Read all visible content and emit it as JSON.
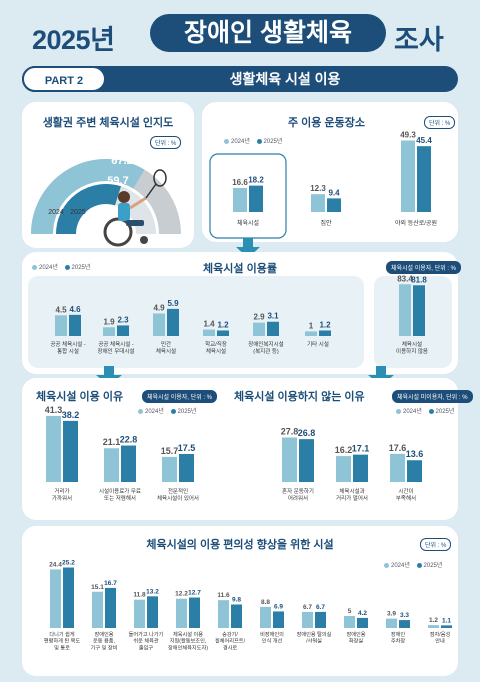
{
  "header": {
    "year": "2025년",
    "pill": "장애인 생활체육",
    "tail": "조사"
  },
  "part": {
    "tag": "PART 2",
    "title": "생활체육 시설 이용"
  },
  "legend": {
    "y2024": "2024년",
    "y2025": "2025년"
  },
  "colors": {
    "y2024": "#8fc4d6",
    "y2025": "#2b7fa6",
    "navy": "#1d4e7a",
    "gray": "#c8cdd2"
  },
  "chart_data": [
    {
      "id": "awareness",
      "type": "pie",
      "title": "생활권 주변 체육시설 인지도",
      "unit": "단위 : %",
      "series": [
        {
          "name": "2024",
          "value": 67.2
        },
        {
          "name": "2025",
          "value": 59.7
        }
      ]
    },
    {
      "id": "main-places",
      "type": "bar",
      "title": "주 이용 운동장소",
      "unit": "단위 : %",
      "categories": [
        "체육시설",
        "집안",
        "야외 등산로/공원"
      ],
      "series": [
        {
          "name": "2024년",
          "values": [
            16.6,
            12.3,
            49.3
          ]
        },
        {
          "name": "2025년",
          "values": [
            18.2,
            9.4,
            45.4
          ]
        }
      ]
    },
    {
      "id": "facility-usage",
      "type": "bar",
      "title": "체육시설 이용률",
      "unit": "체육시설 이용자, 단위 : %",
      "categories": [
        "공공 체육시설 -\n통합 시설",
        "공공 체육시설 -\n장애인 우대시설",
        "민간\n체육시설",
        "학교/직장\n체육시설",
        "장애인복지시설\n(복지관 등)",
        "기타 시설",
        "체육시설\n이용하지 않음"
      ],
      "series": [
        {
          "name": "2024년",
          "values": [
            4.5,
            1.9,
            4.9,
            1.4,
            2.9,
            1.0,
            83.4
          ]
        },
        {
          "name": "2025년",
          "values": [
            4.6,
            2.3,
            5.9,
            1.2,
            3.1,
            1.2,
            81.8
          ]
        }
      ]
    },
    {
      "id": "usage-reasons",
      "type": "bar",
      "title": "체육시설 이용 이유",
      "unit": "체육시설 이용자, 단위 : %",
      "categories": [
        "거리가\n가까워서",
        "시설이용료가 무료\n또는 저렴해서",
        "전문적인\n체육시설이 있어서"
      ],
      "series": [
        {
          "name": "2024년",
          "values": [
            41.3,
            21.1,
            15.7
          ]
        },
        {
          "name": "2025년",
          "values": [
            38.2,
            22.8,
            17.5
          ]
        }
      ]
    },
    {
      "id": "nonuse-reasons",
      "type": "bar",
      "title": "체육시설 이용하지 않는 이유",
      "unit": "체육시설 미이용자, 단위 : %",
      "categories": [
        "혼자 운동하기\n어려워서",
        "체육시설과\n거리가 멀어서",
        "시간이\n부족해서"
      ],
      "series": [
        {
          "name": "2024년",
          "values": [
            27.8,
            16.2,
            17.6
          ]
        },
        {
          "name": "2025년",
          "values": [
            26.8,
            17.1,
            13.6
          ]
        }
      ]
    },
    {
      "id": "convenience",
      "type": "bar",
      "title": "체육시설의 이용 편의성 향상을 위한 시설",
      "unit": "단위 : %",
      "categories": [
        "다니기 쉽게\n편평하게 된 복도\n및 통로",
        "장애인용\n운동 용품,\n기구 및 장비",
        "들어가고 나가기\n쉬운 체육관\n출입구",
        "체육시설 이용\n지원(활동보조인,\n장애인체육지도자)",
        "승강기/\n휠체어리프트/\n경사로",
        "비장애인의\n인식 개선",
        "장애인용 탈의실\n/샤워실",
        "장애인용\n화장실",
        "장애인\n주차장",
        "점자/음성\n안내"
      ],
      "series": [
        {
          "name": "2024년",
          "values": [
            24.4,
            15.1,
            11.8,
            12.2,
            11.6,
            8.8,
            6.7,
            5.0,
            3.9,
            1.2
          ]
        },
        {
          "name": "2025년",
          "values": [
            25.2,
            16.7,
            13.2,
            12.7,
            9.8,
            6.9,
            6.7,
            4.2,
            3.3,
            1.1
          ]
        }
      ]
    }
  ]
}
